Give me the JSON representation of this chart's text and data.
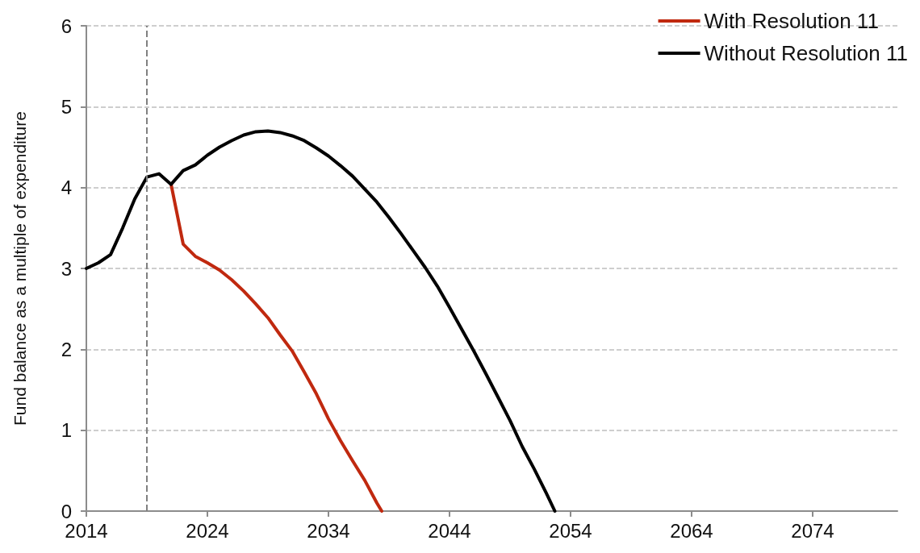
{
  "chart_data": {
    "type": "line",
    "ylabel": "Fund balance as a multiple of expenditure",
    "xlim": [
      2014,
      2081
    ],
    "xticks": [
      2014,
      2024,
      2034,
      2044,
      2054,
      2064,
      2074
    ],
    "ylim": [
      0,
      6
    ],
    "yticks": [
      0,
      1,
      2,
      3,
      4,
      5,
      6
    ],
    "grid": "y",
    "legend": "top right",
    "line_style": "solid",
    "marker": "none",
    "ref_lines": [
      {
        "axis": "x",
        "value": 2019,
        "color": "#808080",
        "line_style": "dashed"
      }
    ],
    "series": [
      {
        "name": "With Resolution 11",
        "color": "#c0290f",
        "x": [
          2021,
          2022,
          2023,
          2024,
          2025,
          2026,
          2027,
          2028,
          2029,
          2030,
          2031,
          2032,
          2033,
          2034,
          2035,
          2036,
          2037,
          2038,
          2038.4
        ],
        "values": [
          4.04,
          3.3,
          3.15,
          3.07,
          2.98,
          2.86,
          2.72,
          2.56,
          2.39,
          2.18,
          1.98,
          1.72,
          1.45,
          1.14,
          0.87,
          0.62,
          0.38,
          0.1,
          0
        ]
      },
      {
        "name": "Without Resolution 11",
        "color": "#000000",
        "x": [
          2014,
          2015,
          2016,
          2017,
          2018,
          2019,
          2020,
          2021,
          2022,
          2023,
          2024,
          2025,
          2026,
          2027,
          2028,
          2029,
          2030,
          2031,
          2032,
          2033,
          2034,
          2035,
          2036,
          2037,
          2038,
          2039,
          2040,
          2041,
          2042,
          2043,
          2044,
          2045,
          2046,
          2047,
          2048,
          2049,
          2050,
          2051,
          2052,
          2052.7
        ],
        "values": [
          3.0,
          3.07,
          3.17,
          3.5,
          3.86,
          4.13,
          4.17,
          4.04,
          4.21,
          4.28,
          4.4,
          4.5,
          4.58,
          4.65,
          4.69,
          4.7,
          4.68,
          4.64,
          4.58,
          4.49,
          4.39,
          4.27,
          4.14,
          3.98,
          3.82,
          3.63,
          3.43,
          3.22,
          3.01,
          2.78,
          2.52,
          2.25,
          1.98,
          1.7,
          1.41,
          1.12,
          0.8,
          0.52,
          0.22,
          0
        ]
      }
    ]
  }
}
